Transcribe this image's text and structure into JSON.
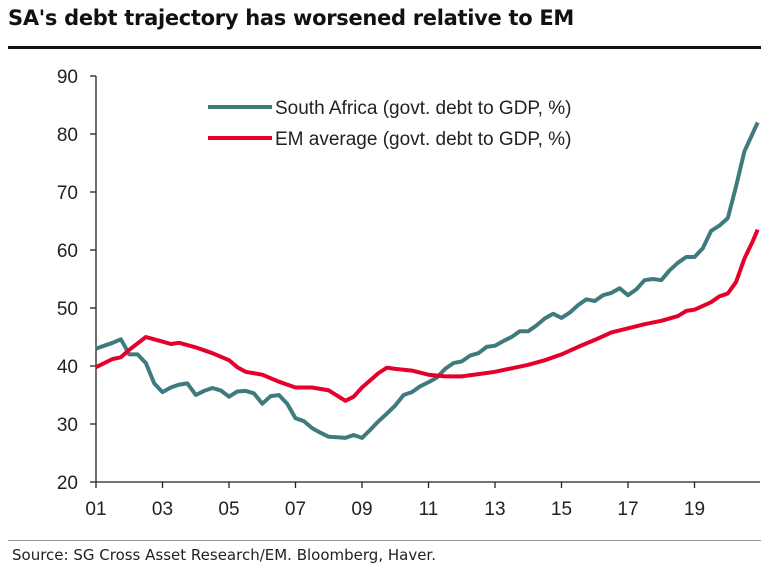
{
  "chart_data": {
    "type": "line",
    "title": "SA's debt trajectory has worsened relative to EM",
    "source": "Source: SG Cross Asset Research/EM. Bloomberg, Haver.",
    "xlabel": "",
    "ylabel": "",
    "ylim": [
      20,
      90
    ],
    "yticks": [
      20,
      30,
      40,
      50,
      60,
      70,
      80,
      90
    ],
    "xlim": [
      2001,
      2021
    ],
    "xticks": [
      {
        "value": 2001,
        "label": "01"
      },
      {
        "value": 2003,
        "label": "03"
      },
      {
        "value": 2005,
        "label": "05"
      },
      {
        "value": 2007,
        "label": "07"
      },
      {
        "value": 2009,
        "label": "09"
      },
      {
        "value": 2011,
        "label": "11"
      },
      {
        "value": 2013,
        "label": "13"
      },
      {
        "value": 2015,
        "label": "15"
      },
      {
        "value": 2017,
        "label": "17"
      },
      {
        "value": 2019,
        "label": "19"
      }
    ],
    "grid": false,
    "legend_position": "top-center",
    "series": [
      {
        "name": "South Africa (govt. debt to GDP, %)",
        "color": "#3f7b7d",
        "x": [
          2001,
          2001.25,
          2001.5,
          2001.75,
          2002,
          2002.25,
          2002.5,
          2002.75,
          2003,
          2003.25,
          2003.5,
          2003.75,
          2004,
          2004.25,
          2004.5,
          2004.75,
          2005,
          2005.25,
          2005.5,
          2005.75,
          2006,
          2006.25,
          2006.5,
          2006.75,
          2007,
          2007.25,
          2007.5,
          2007.75,
          2008,
          2008.25,
          2008.5,
          2008.75,
          2009,
          2009.25,
          2009.5,
          2009.75,
          2010,
          2010.25,
          2010.5,
          2010.75,
          2011,
          2011.25,
          2011.5,
          2011.75,
          2012,
          2012.25,
          2012.5,
          2012.75,
          2013,
          2013.25,
          2013.5,
          2013.75,
          2014,
          2014.25,
          2014.5,
          2014.75,
          2015,
          2015.25,
          2015.5,
          2015.75,
          2016,
          2016.25,
          2016.5,
          2016.75,
          2017,
          2017.25,
          2017.5,
          2017.75,
          2018,
          2018.25,
          2018.5,
          2018.75,
          2019,
          2019.25,
          2019.5,
          2019.75,
          2020,
          2020.25,
          2020.5,
          2020.9
        ],
        "values": [
          43,
          43.5,
          44,
          44.6,
          42,
          42,
          40.5,
          37,
          35.5,
          36.3,
          36.8,
          37,
          35,
          35.7,
          36.2,
          35.8,
          34.7,
          35.6,
          35.7,
          35.3,
          33.5,
          34.8,
          35,
          33.5,
          31,
          30.5,
          29.3,
          28.5,
          27.8,
          27.7,
          27.6,
          28.1,
          27.6,
          29,
          30.5,
          31.8,
          33.2,
          35,
          35.5,
          36.5,
          37.2,
          38,
          39.5,
          40.5,
          40.8,
          41.8,
          42.2,
          43.3,
          43.5,
          44.3,
          45,
          46,
          46,
          47,
          48.2,
          49,
          48.3,
          49.2,
          50.5,
          51.5,
          51.2,
          52.2,
          52.6,
          53.4,
          52.2,
          53.2,
          54.8,
          55,
          54.8,
          56.5,
          57.8,
          58.8,
          58.8,
          60.3,
          63.3,
          64.2,
          65.5,
          71,
          77,
          82
        ]
      },
      {
        "name": "EM average (govt. debt to GDP, %)",
        "color": "#e4002b",
        "x": [
          2001,
          2001.5,
          2001.75,
          2002,
          2002.5,
          2002.75,
          2003,
          2003.25,
          2003.5,
          2004,
          2004.5,
          2005,
          2005.25,
          2005.5,
          2006,
          2006.5,
          2007,
          2007.5,
          2008,
          2008.5,
          2008.75,
          2009,
          2009.5,
          2009.75,
          2010,
          2010.5,
          2011,
          2011.5,
          2012,
          2012.5,
          2013,
          2013.5,
          2014,
          2014.5,
          2015,
          2015.5,
          2016,
          2016.5,
          2017,
          2017.5,
          2018,
          2018.5,
          2018.75,
          2019,
          2019.5,
          2019.75,
          2020,
          2020.25,
          2020.5,
          2020.75,
          2020.9
        ],
        "values": [
          39.8,
          41.2,
          41.5,
          42.8,
          45,
          44.6,
          44.2,
          43.8,
          44,
          43.2,
          42.2,
          41,
          39.8,
          39,
          38.5,
          37.3,
          36.3,
          36.3,
          35.8,
          34,
          34.7,
          36.3,
          38.8,
          39.7,
          39.5,
          39.2,
          38.5,
          38.2,
          38.2,
          38.6,
          39,
          39.6,
          40.2,
          41,
          42,
          43.3,
          44.5,
          45.8,
          46.5,
          47.2,
          47.8,
          48.6,
          49.5,
          49.7,
          51,
          52,
          52.5,
          54.5,
          58.5,
          61.5,
          63.5
        ]
      }
    ]
  }
}
